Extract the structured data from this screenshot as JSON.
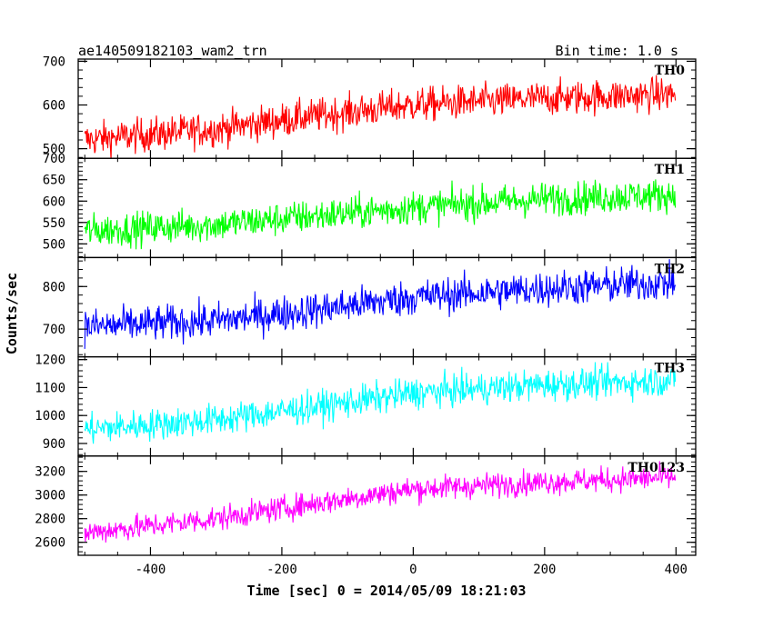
{
  "chart_data": {
    "type": "line",
    "title": "ae140509182103_wam2_trn",
    "subtitle": "Bin time: 1.0 s",
    "xlabel": "Time [sec] 0 = 2014/05/09 18:21:03",
    "ylabel": "Counts/sec",
    "xlim": [
      -510,
      430
    ],
    "x_ticks": [
      -400,
      -200,
      0,
      200,
      400
    ],
    "x_range_data": [
      -500,
      399
    ],
    "panels": [
      {
        "name": "TH0",
        "color": "#ff0000",
        "ylim": [
          478,
          705
        ],
        "y_ticks": [
          500,
          600,
          700
        ],
        "trend": [
          [
            -500,
            520
          ],
          [
            -300,
            545
          ],
          [
            -150,
            575
          ],
          [
            0,
            600
          ],
          [
            200,
            615
          ],
          [
            400,
            625
          ]
        ],
        "noise": 28
      },
      {
        "name": "TH1",
        "color": "#00ff00",
        "ylim": [
          468,
          700
        ],
        "y_ticks": [
          500,
          550,
          600,
          650,
          700
        ],
        "trend": [
          [
            -500,
            530
          ],
          [
            -300,
            545
          ],
          [
            -150,
            565
          ],
          [
            0,
            585
          ],
          [
            200,
            605
          ],
          [
            400,
            615
          ]
        ],
        "noise": 28
      },
      {
        "name": "TH2",
        "color": "#0000ff",
        "ylim": [
          635,
          868
        ],
        "y_ticks": [
          700,
          800
        ],
        "trend": [
          [
            -500,
            705
          ],
          [
            -300,
            720
          ],
          [
            -150,
            745
          ],
          [
            0,
            775
          ],
          [
            200,
            795
          ],
          [
            400,
            810
          ]
        ],
        "noise": 30
      },
      {
        "name": "TH3",
        "color": "#00ffff",
        "ylim": [
          855,
          1210
        ],
        "y_ticks": [
          900,
          1000,
          1100,
          1200
        ],
        "trend": [
          [
            -500,
            950
          ],
          [
            -300,
            985
          ],
          [
            -150,
            1030
          ],
          [
            0,
            1080
          ],
          [
            200,
            1110
          ],
          [
            400,
            1125
          ]
        ],
        "noise": 40
      },
      {
        "name": "TH0123",
        "color": "#ff00ff",
        "ylim": [
          2490,
          3330
        ],
        "y_ticks": [
          2600,
          2800,
          3000,
          3200
        ],
        "trend": [
          [
            -500,
            2680
          ],
          [
            -300,
            2800
          ],
          [
            -150,
            2930
          ],
          [
            0,
            3050
          ],
          [
            200,
            3110
          ],
          [
            400,
            3150
          ]
        ],
        "noise": 75
      }
    ]
  }
}
